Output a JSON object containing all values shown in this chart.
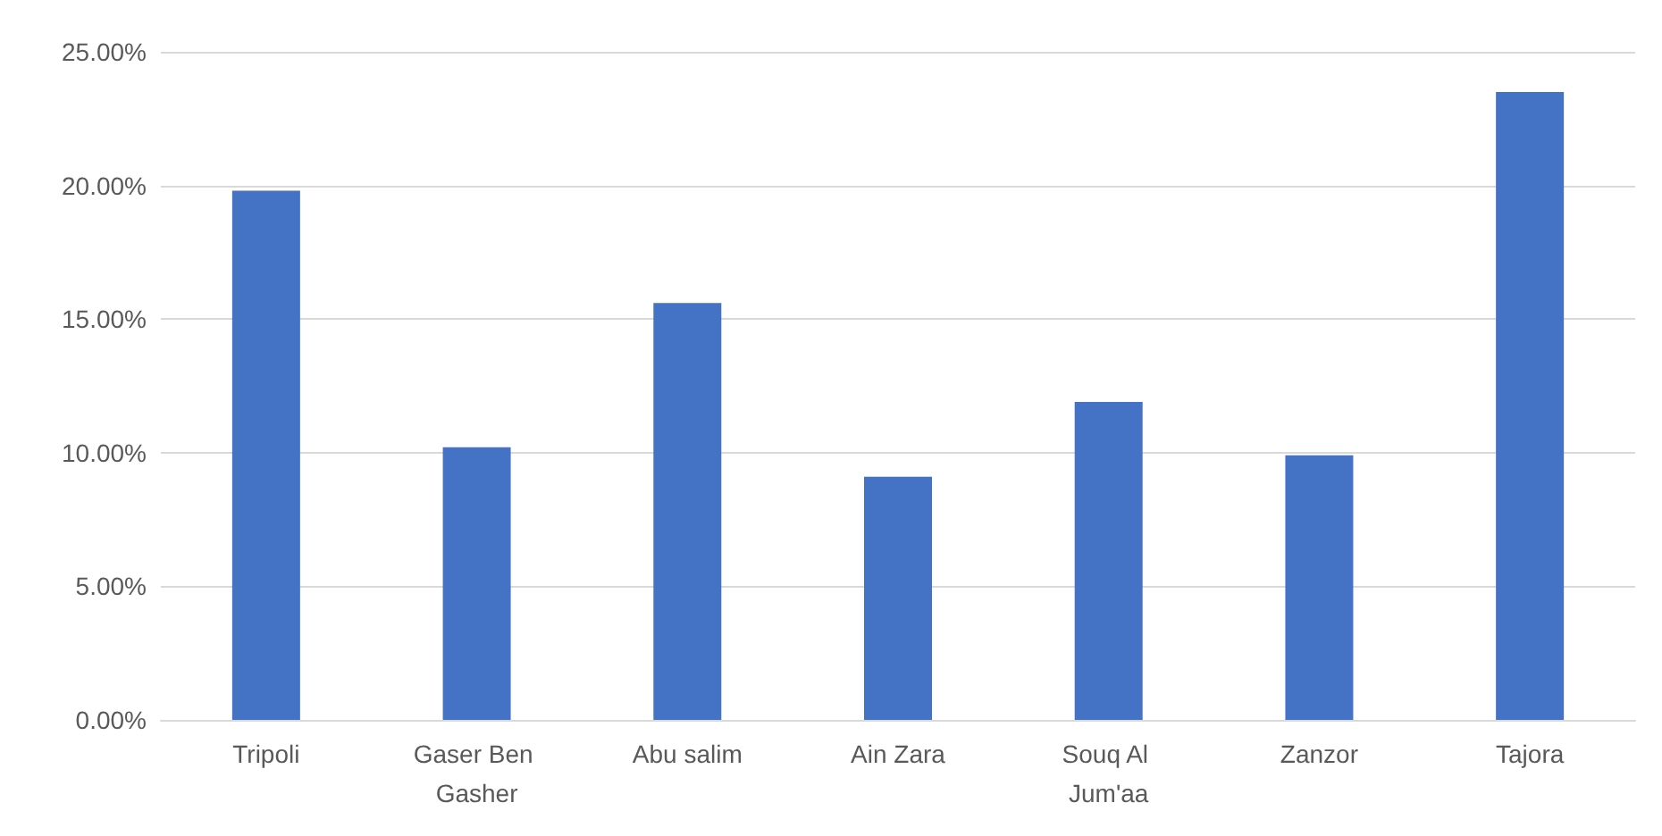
{
  "chart_data": {
    "type": "bar",
    "categories": [
      "Tripoli",
      "Gaser Ben Gasher",
      "Abu salim",
      "Ain Zara",
      "Souq Al Jum'aa",
      "Zanzor",
      "Tajora"
    ],
    "values": [
      19.8,
      10.2,
      15.6,
      9.1,
      11.9,
      9.9,
      23.5
    ],
    "color": "#4472c4",
    "ylim": [
      0,
      25
    ],
    "yticks": [
      {
        "value": 0,
        "label": "0.00%"
      },
      {
        "value": 5,
        "label": "5.00%"
      },
      {
        "value": 10,
        "label": "10.00%"
      },
      {
        "value": 15,
        "label": "15.00%"
      },
      {
        "value": 20,
        "label": "20.00%"
      },
      {
        "value": 25,
        "label": "25.00%"
      }
    ],
    "grid": "y"
  }
}
